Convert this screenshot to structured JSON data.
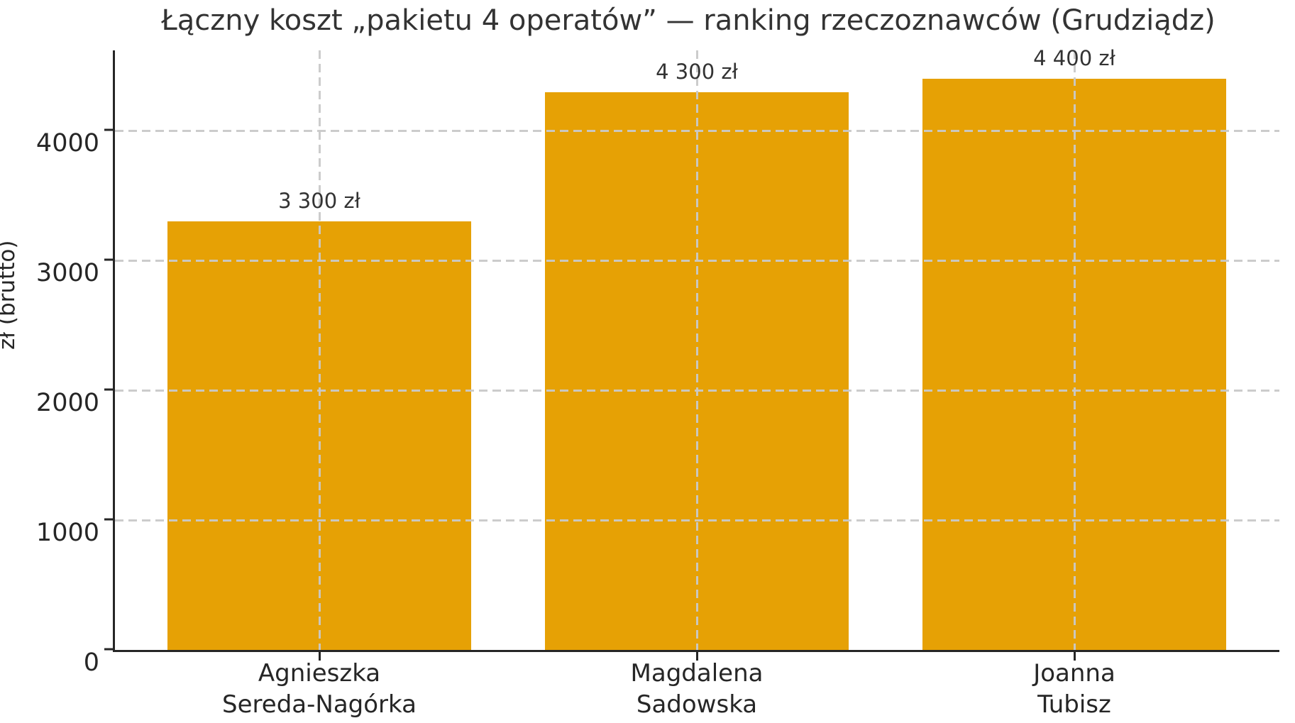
{
  "chart_data": {
    "type": "bar",
    "title": "Łączny koszt „pakietu 4 operatów” — ranking rzeczoznawców (Grudziądz)",
    "ylabel": "zł (brutto)",
    "xlabel": "",
    "categories": [
      [
        "Agnieszka",
        "Sereda-Nagórka"
      ],
      [
        "Magdalena",
        "Sadowska"
      ],
      [
        "Joanna",
        "Tubisz"
      ]
    ],
    "values": [
      3300,
      4300,
      4400
    ],
    "bar_value_labels": [
      "3 300 zł",
      "4 300 zł",
      "4 400 zł"
    ],
    "yticks": [
      0,
      1000,
      2000,
      3000,
      4000
    ],
    "ylim": [
      0,
      4620
    ],
    "grid": "dashed, horizontal and vertical, drawn over bars",
    "legend": "none",
    "colors": {
      "bar": "#E6A105",
      "grid": "#C9C9C9",
      "axis": "#262626",
      "title_text": "#333333",
      "tick_text": "#262626",
      "background": "#FFFFFF"
    }
  }
}
